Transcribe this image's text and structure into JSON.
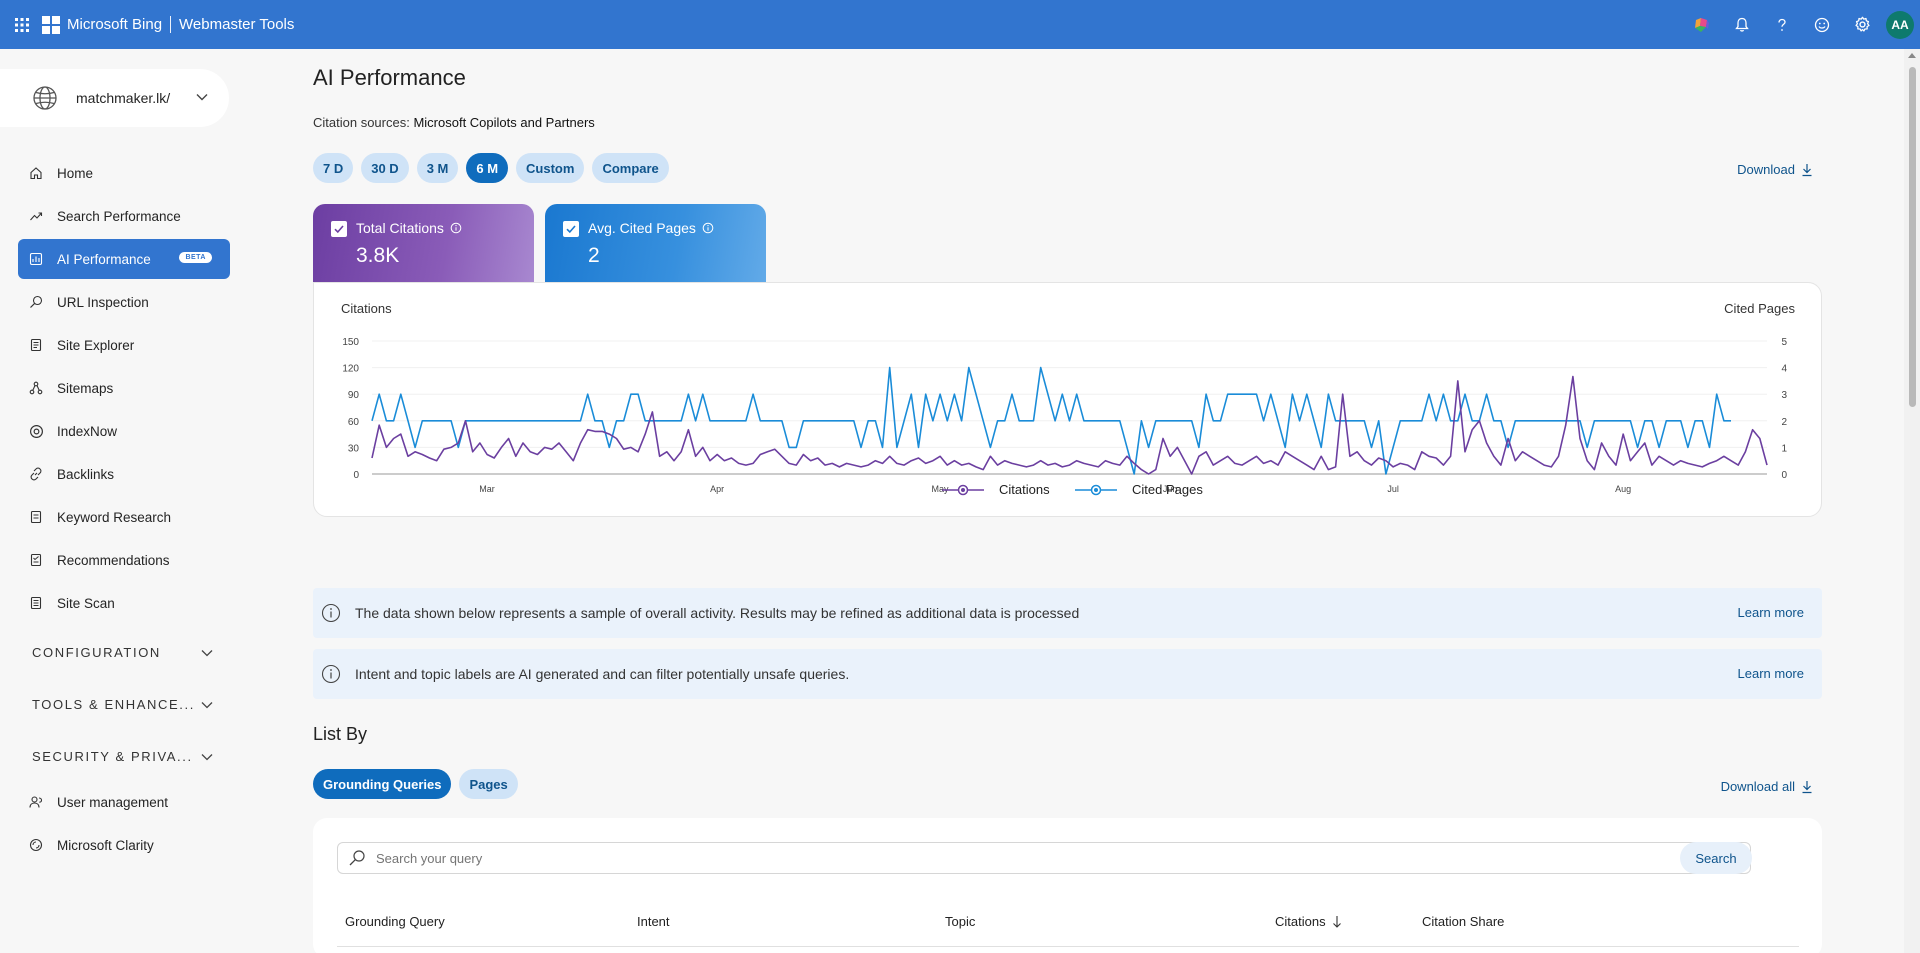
{
  "header": {
    "brand": "Microsoft Bing",
    "product": "Webmaster Tools",
    "avatar_initials": "AA",
    "icons": [
      "app-launcher-icon",
      "copilot-icon",
      "bell-icon",
      "help-icon",
      "smiley-icon",
      "gear-icon"
    ]
  },
  "sidebar": {
    "site": "matchmaker.lk/",
    "items": [
      {
        "label": "Home",
        "icon": "home-icon"
      },
      {
        "label": "Search Performance",
        "icon": "trend-icon"
      },
      {
        "label": "AI Performance",
        "icon": "ai-icon",
        "badge": "BETA",
        "active": true
      },
      {
        "label": "URL Inspection",
        "icon": "magnifier-icon"
      },
      {
        "label": "Site Explorer",
        "icon": "document-icon"
      },
      {
        "label": "Sitemaps",
        "icon": "sitemap-icon"
      },
      {
        "label": "IndexNow",
        "icon": "indexnow-icon"
      },
      {
        "label": "Backlinks",
        "icon": "link-icon"
      },
      {
        "label": "Keyword Research",
        "icon": "keyword-icon"
      },
      {
        "label": "Recommendations",
        "icon": "recommendations-icon"
      },
      {
        "label": "Site Scan",
        "icon": "scan-icon"
      }
    ],
    "sections": [
      "CONFIGURATION",
      "TOOLS & ENHANCE...",
      "SECURITY & PRIVA..."
    ],
    "bottom_items": [
      {
        "label": "User management",
        "icon": "user-icon"
      },
      {
        "label": "Microsoft Clarity",
        "icon": "clarity-icon"
      }
    ]
  },
  "main": {
    "title": "AI Performance",
    "citation_sources_label": "Citation sources:",
    "citation_sources_value": "Microsoft Copilots and Partners",
    "ranges": [
      {
        "label": "7 D",
        "selected": false
      },
      {
        "label": "30 D",
        "selected": false
      },
      {
        "label": "3 M",
        "selected": false
      },
      {
        "label": "6 M",
        "selected": true
      },
      {
        "label": "Custom",
        "selected": false
      },
      {
        "label": "Compare",
        "selected": false
      }
    ],
    "download_label": "Download",
    "metrics": [
      {
        "label": "Total Citations",
        "value": "3.8K",
        "checked": true,
        "color": "#6c3ea2"
      },
      {
        "label": "Avg. Cited Pages",
        "value": "2",
        "checked": true,
        "color": "#1a78d0"
      }
    ],
    "banners": [
      {
        "text": "The data shown below represents a sample of overall activity. Results may be refined as additional data is processed",
        "link": "Learn more"
      },
      {
        "text": "Intent and topic labels are AI generated and can filter potentially unsafe queries.",
        "link": "Learn more"
      }
    ],
    "list_by": {
      "title": "List By",
      "tabs": [
        {
          "label": "Grounding Queries",
          "selected": true
        },
        {
          "label": "Pages",
          "selected": false
        }
      ],
      "download_all_label": "Download all",
      "search_placeholder": "Search your query",
      "search_button": "Search",
      "columns": [
        "Grounding Query",
        "Intent",
        "Topic",
        "Citations",
        "Citation Share"
      ],
      "sort_column": "Citations"
    }
  },
  "chart_data": {
    "type": "line",
    "left_axis_label": "Citations",
    "right_axis_label": "Cited Pages",
    "left_ticks": [
      0,
      30,
      60,
      90,
      120,
      150
    ],
    "right_ticks": [
      0,
      1,
      2,
      3,
      4,
      5
    ],
    "ylim_left": [
      0,
      150
    ],
    "ylim_right": [
      0,
      5
    ],
    "x_tick_labels": [
      "Mar",
      "Apr",
      "May",
      "Jun",
      "Jul",
      "Aug"
    ],
    "x_tick_index": [
      16,
      48,
      79,
      111,
      142,
      174
    ],
    "legend_position": "bottom-center",
    "series": [
      {
        "name": "Citations",
        "axis": "left",
        "color": "#6b3fa0",
        "values": [
          18,
          55,
          30,
          40,
          45,
          20,
          25,
          22,
          18,
          15,
          28,
          30,
          35,
          60,
          25,
          35,
          22,
          18,
          30,
          40,
          20,
          35,
          25,
          22,
          30,
          28,
          35,
          25,
          15,
          35,
          50,
          48,
          48,
          45,
          40,
          28,
          30,
          25,
          45,
          70,
          20,
          25,
          15,
          25,
          50,
          20,
          30,
          15,
          22,
          15,
          18,
          12,
          10,
          12,
          22,
          25,
          28,
          20,
          12,
          10,
          22,
          15,
          18,
          10,
          12,
          8,
          12,
          10,
          8,
          10,
          15,
          12,
          20,
          12,
          10,
          15,
          18,
          12,
          15,
          20,
          10,
          15,
          10,
          12,
          8,
          5,
          20,
          10,
          15,
          12,
          10,
          8,
          10,
          15,
          10,
          12,
          8,
          10,
          15,
          12,
          10,
          8,
          15,
          12,
          10,
          20,
          12,
          5,
          0,
          5,
          40,
          20,
          30,
          15,
          0,
          20,
          25,
          10,
          15,
          20,
          12,
          10,
          15,
          20,
          12,
          15,
          10,
          25,
          20,
          15,
          10,
          5,
          20,
          5,
          8,
          90,
          20,
          25,
          15,
          10,
          18,
          15,
          8,
          12,
          10,
          5,
          25,
          20,
          18,
          10,
          20,
          105,
          25,
          50,
          60,
          35,
          20,
          10,
          40,
          15,
          25,
          20,
          15,
          10,
          8,
          20,
          55,
          110,
          40,
          15,
          5,
          35,
          20,
          10,
          45,
          15,
          25,
          35,
          10,
          20,
          15,
          10,
          15,
          12,
          10,
          8,
          12,
          15,
          20,
          15,
          10,
          25,
          50,
          40,
          10
        ]
      },
      {
        "name": "Cited Pages",
        "axis": "right",
        "color": "#1a8cd8",
        "values": [
          2,
          3,
          2,
          2,
          3,
          2,
          1,
          2,
          2,
          2,
          2,
          2,
          1,
          2,
          2,
          2,
          2,
          2,
          2,
          2,
          2,
          2,
          2,
          2,
          2,
          2,
          2,
          2,
          2,
          2,
          3,
          2,
          2,
          1,
          2,
          2,
          3,
          3,
          2,
          2,
          2,
          2,
          2,
          2,
          3,
          2,
          3,
          2,
          2,
          2,
          2,
          2,
          2,
          3,
          2,
          2,
          2,
          2,
          1,
          1,
          2,
          2,
          2,
          2,
          2,
          2,
          2,
          2,
          1,
          2,
          2,
          1,
          4,
          1,
          2,
          3,
          1,
          3,
          2,
          3,
          2,
          3,
          2,
          4,
          3,
          2,
          1,
          2,
          2,
          3,
          2,
          2,
          2,
          4,
          3,
          2,
          3,
          2,
          3,
          2,
          2,
          2,
          2,
          2,
          2,
          1,
          0,
          2,
          1,
          2,
          2,
          2,
          2,
          2,
          2,
          1,
          3,
          2,
          2,
          3,
          3,
          3,
          3,
          3,
          2,
          3,
          2,
          1,
          3,
          2,
          3,
          2,
          1,
          3,
          2,
          2,
          2,
          2,
          2,
          1,
          2,
          0,
          1,
          2,
          2,
          2,
          2,
          3,
          2,
          3,
          2,
          2,
          3,
          2,
          2,
          3,
          2,
          2,
          1,
          2,
          2,
          2,
          2,
          2,
          2,
          2,
          2,
          2,
          2,
          1,
          2,
          2,
          2,
          2,
          2,
          2,
          1,
          2,
          2,
          1,
          2,
          2,
          2,
          1,
          2,
          2,
          1,
          3,
          2,
          2
        ]
      }
    ]
  }
}
